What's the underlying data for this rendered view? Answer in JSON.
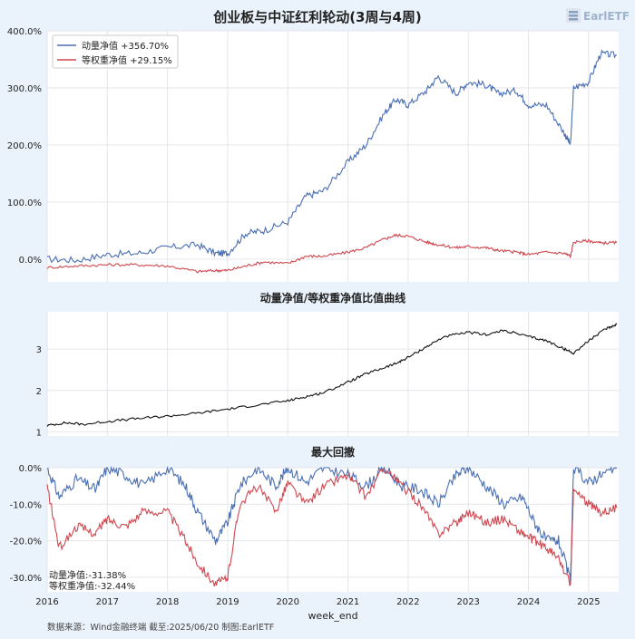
{
  "page_title": "创业板与中证红利轮动(3周与4周)",
  "logo_text": "EarlETF",
  "footer_text": "数据来源：Wind金融终端 截至:2025/06/20 制图:EarlETF",
  "colors": {
    "background": "#eaf2fb",
    "plot_bg": "#ffffff",
    "grid": "#e4e6ea",
    "momentum": "#4a6fb3",
    "equal_weight": "#d0474f",
    "ratio": "#111111",
    "text": "#222222"
  },
  "chart_data": [
    {
      "type": "line",
      "title": "",
      "xlabel": "",
      "ylabel": "",
      "ylim": [
        -0.4,
        4.0
      ],
      "ytick_labels": [
        "0.0%",
        "100.0%",
        "200.0%",
        "300.0%",
        "400.0%"
      ],
      "ytick_values": [
        0,
        1,
        2,
        3,
        4
      ],
      "legend_position": "top-left",
      "legend": [
        "动量净值 +356.70%",
        "等权重净值 +29.15%"
      ],
      "x": [
        2016.0,
        2016.5,
        2017.0,
        2017.5,
        2018.0,
        2018.5,
        2018.8,
        2019.0,
        2019.3,
        2019.6,
        2020.0,
        2020.3,
        2020.6,
        2021.0,
        2021.3,
        2021.6,
        2021.8,
        2022.0,
        2022.3,
        2022.5,
        2022.8,
        2023.0,
        2023.3,
        2023.5,
        2023.8,
        2024.0,
        2024.3,
        2024.6,
        2024.7,
        2024.75,
        2025.0,
        2025.2,
        2025.47
      ],
      "series": [
        {
          "name": "动量净值",
          "values": [
            0.0,
            -0.02,
            0.08,
            0.1,
            0.2,
            0.25,
            0.1,
            0.1,
            0.45,
            0.5,
            0.65,
            1.1,
            1.2,
            1.7,
            2.0,
            2.55,
            2.8,
            2.7,
            2.95,
            3.2,
            2.9,
            3.1,
            3.05,
            2.9,
            2.95,
            2.7,
            2.7,
            2.2,
            2.0,
            3.0,
            3.1,
            3.6,
            3.57
          ]
        },
        {
          "name": "等权重净值",
          "values": [
            -0.15,
            -0.12,
            -0.1,
            -0.1,
            -0.12,
            -0.22,
            -0.2,
            -0.2,
            -0.12,
            -0.05,
            -0.08,
            0.05,
            0.05,
            0.12,
            0.2,
            0.35,
            0.42,
            0.4,
            0.3,
            0.25,
            0.2,
            0.22,
            0.2,
            0.15,
            0.12,
            0.08,
            0.12,
            0.1,
            0.05,
            0.3,
            0.32,
            0.28,
            0.29
          ]
        }
      ]
    },
    {
      "type": "line",
      "title": "动量净值/等权重净值比值曲线",
      "ylim": [
        0.9,
        3.9
      ],
      "ytick_labels": [
        "1",
        "2",
        "3"
      ],
      "ytick_values": [
        1,
        2,
        3
      ],
      "x": [
        2016.0,
        2016.3,
        2016.6,
        2017.0,
        2017.5,
        2018.0,
        2018.5,
        2019.0,
        2019.5,
        2020.0,
        2020.3,
        2020.6,
        2021.0,
        2021.3,
        2021.6,
        2021.8,
        2022.0,
        2022.3,
        2022.6,
        2023.0,
        2023.3,
        2023.6,
        2024.0,
        2024.3,
        2024.6,
        2024.75,
        2025.0,
        2025.3,
        2025.47
      ],
      "series": [
        {
          "name": "比值",
          "values": [
            1.15,
            1.22,
            1.18,
            1.25,
            1.32,
            1.38,
            1.45,
            1.55,
            1.65,
            1.75,
            1.85,
            1.95,
            2.2,
            2.4,
            2.55,
            2.65,
            2.8,
            3.05,
            3.3,
            3.4,
            3.35,
            3.45,
            3.3,
            3.2,
            3.0,
            2.9,
            3.2,
            3.5,
            3.6
          ]
        }
      ]
    },
    {
      "type": "line",
      "title": "最大回撤",
      "ylim": [
        -0.34,
        0.0
      ],
      "ytick_labels": [
        "0.0%",
        "-10.0%",
        "-20.0%",
        "-30.0%"
      ],
      "ytick_values": [
        0,
        -0.1,
        -0.2,
        -0.3
      ],
      "annotations": [
        "动量净值:-31.38%",
        "等权重净值:-32.44%"
      ],
      "xlabel": "week_end",
      "xtick_labels": [
        "2016",
        "2017",
        "2018",
        "2019",
        "2020",
        "2021",
        "2022",
        "2023",
        "2024",
        "2025"
      ],
      "xtick_values": [
        2016,
        2017,
        2018,
        2019,
        2020,
        2021,
        2022,
        2023,
        2024,
        2025
      ],
      "x": [
        2016.0,
        2016.2,
        2016.5,
        2016.8,
        2017.0,
        2017.3,
        2017.6,
        2018.0,
        2018.3,
        2018.5,
        2018.8,
        2019.0,
        2019.2,
        2019.5,
        2019.8,
        2020.0,
        2020.3,
        2020.6,
        2021.0,
        2021.3,
        2021.6,
        2021.9,
        2022.2,
        2022.5,
        2022.8,
        2023.0,
        2023.3,
        2023.6,
        2023.9,
        2024.1,
        2024.3,
        2024.5,
        2024.7,
        2024.75,
        2025.0,
        2025.2,
        2025.47
      ],
      "series": [
        {
          "name": "动量净值",
          "values": [
            0.0,
            -0.08,
            -0.03,
            -0.06,
            0.0,
            -0.02,
            -0.05,
            0.0,
            -0.05,
            -0.12,
            -0.2,
            -0.15,
            -0.05,
            0.0,
            -0.05,
            0.0,
            -0.04,
            0.0,
            -0.02,
            -0.05,
            0.0,
            -0.05,
            -0.06,
            -0.1,
            -0.02,
            0.0,
            -0.05,
            -0.1,
            -0.08,
            -0.15,
            -0.2,
            -0.2,
            -0.31,
            0.0,
            -0.04,
            -0.02,
            0.0
          ]
        },
        {
          "name": "等权重净值",
          "values": [
            -0.05,
            -0.22,
            -0.16,
            -0.18,
            -0.14,
            -0.16,
            -0.12,
            -0.12,
            -0.2,
            -0.26,
            -0.32,
            -0.3,
            -0.1,
            -0.05,
            -0.12,
            -0.04,
            -0.1,
            -0.05,
            -0.02,
            -0.08,
            0.0,
            -0.05,
            -0.1,
            -0.18,
            -0.15,
            -0.12,
            -0.15,
            -0.14,
            -0.18,
            -0.2,
            -0.22,
            -0.25,
            -0.32,
            -0.06,
            -0.1,
            -0.12,
            -0.11
          ]
        }
      ]
    }
  ]
}
